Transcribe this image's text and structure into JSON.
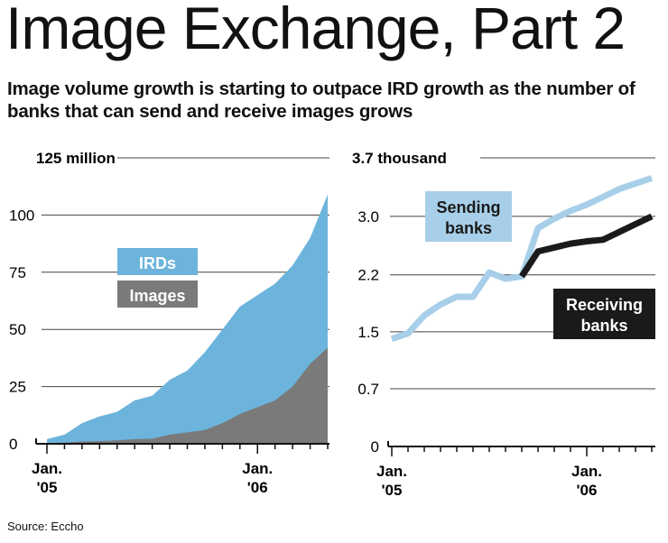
{
  "title": "Image Exchange, Part 2",
  "subtitle": "Image volume growth is starting to outpace IRD growth as the number of banks that can send and receive images grows",
  "source": "Source: Eccho",
  "colors": {
    "ird": "#6cb4dc",
    "images": "#7a7a7a",
    "sending": "#a7cfe9",
    "receiving": "#1a1a1a",
    "grid": "#444444"
  },
  "chart_data": [
    {
      "type": "area",
      "unit_label": "125 million",
      "yticks": [
        "100",
        "75",
        "50",
        "25",
        "0"
      ],
      "ytick_values": [
        100,
        75,
        50,
        25,
        0
      ],
      "ylim": [
        0,
        125
      ],
      "xlabels": [
        {
          "line1": "Jan.",
          "line2": "'05"
        },
        {
          "line1": "Jan.",
          "line2": "'06"
        }
      ],
      "x": [
        0,
        1,
        2,
        3,
        4,
        5,
        6,
        7,
        8,
        9,
        10,
        11,
        12,
        13,
        14,
        15,
        16
      ],
      "series": [
        {
          "name": "IRDs",
          "values": [
            2,
            4,
            9,
            12,
            14,
            19,
            21,
            28,
            32,
            40,
            50,
            60,
            65,
            70,
            78,
            90,
            109
          ]
        },
        {
          "name": "Images",
          "values": [
            0.3,
            0.5,
            1,
            1.2,
            1.5,
            2,
            2.2,
            4,
            5,
            6,
            9,
            13,
            16,
            19,
            25,
            35,
            42
          ]
        }
      ]
    },
    {
      "type": "line",
      "unit_label": "3.7 thousand",
      "yticks": [
        "3.0",
        "2.2",
        "1.5",
        "0.7",
        "0"
      ],
      "ytick_values": [
        2.95,
        2.2,
        1.47,
        0.74,
        0
      ],
      "ylim": [
        0,
        3.7
      ],
      "xlabels": [
        {
          "line1": "Jan.",
          "line2": "'05"
        },
        {
          "line1": "Jan.",
          "line2": "'06"
        }
      ],
      "x": [
        0,
        1,
        2,
        3,
        4,
        5,
        6,
        7,
        8,
        9,
        10,
        11,
        12,
        13,
        14,
        15,
        16
      ],
      "series": [
        {
          "name": "Sending banks",
          "values": [
            1.38,
            1.45,
            1.68,
            1.82,
            1.92,
            1.92,
            2.23,
            2.15,
            2.18,
            2.8,
            2.92,
            3.02,
            3.1,
            3.2,
            3.3,
            3.37,
            3.44
          ]
        },
        {
          "name": "Receiving banks",
          "values": [
            1.38,
            1.45,
            1.68,
            1.82,
            1.92,
            1.92,
            2.23,
            2.15,
            2.18,
            2.5,
            2.55,
            2.6,
            2.63,
            2.65,
            2.75,
            2.85,
            2.95
          ]
        }
      ]
    }
  ]
}
